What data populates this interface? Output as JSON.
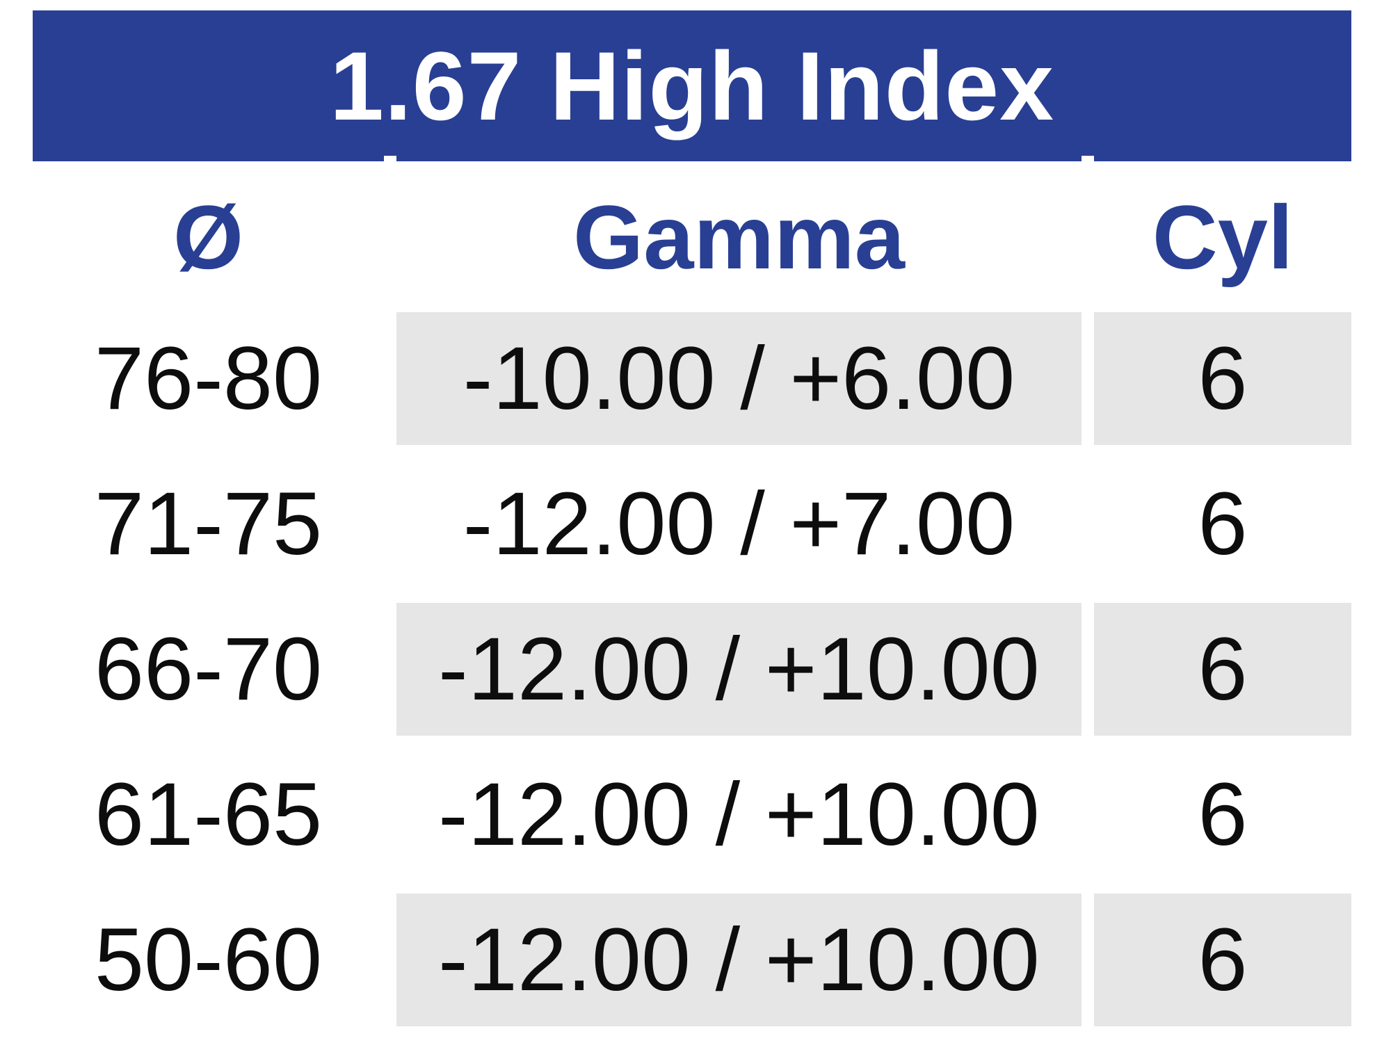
{
  "table": {
    "title": "1.67 High Index",
    "columns": [
      {
        "key": "diameter",
        "label": "Ø"
      },
      {
        "key": "gamma",
        "label": "Gamma"
      },
      {
        "key": "cyl",
        "label": "Cyl"
      }
    ],
    "rows": [
      {
        "diameter": "76-80",
        "gamma": "-10.00 / +6.00",
        "cyl": "6",
        "shaded": true
      },
      {
        "diameter": "71-75",
        "gamma": "-12.00 / +7.00",
        "cyl": "6",
        "shaded": false
      },
      {
        "diameter": "66-70",
        "gamma": "-12.00 / +10.00",
        "cyl": "6",
        "shaded": true
      },
      {
        "diameter": "61-65",
        "gamma": "-12.00 / +10.00",
        "cyl": "6",
        "shaded": false
      },
      {
        "diameter": "50-60",
        "gamma": "-12.00 / +10.00",
        "cyl": "6",
        "shaded": true
      }
    ],
    "colors": {
      "banner_blue": "#293f93",
      "header_text_blue": "#293f93",
      "shaded_cell_gray": "#e6e6e6",
      "data_text": "#0d0d0d",
      "background": "#ffffff"
    }
  },
  "chart_data": {
    "type": "table",
    "title": "1.67 High Index",
    "columns": [
      "Ø",
      "Gamma",
      "Cyl"
    ],
    "rows": [
      [
        "76-80",
        "-10.00 / +6.00",
        "6"
      ],
      [
        "71-75",
        "-12.00 / +7.00",
        "6"
      ],
      [
        "66-70",
        "-12.00 / +10.00",
        "6"
      ],
      [
        "61-65",
        "-12.00 / +10.00",
        "6"
      ],
      [
        "50-60",
        "-12.00 / +10.00",
        "6"
      ]
    ]
  }
}
